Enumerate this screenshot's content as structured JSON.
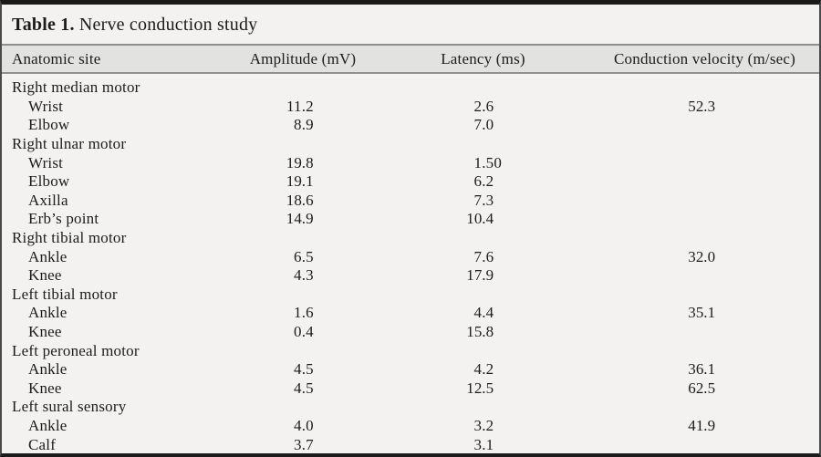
{
  "table": {
    "title_label": "Table 1.",
    "title_text": "Nerve conduction study",
    "columns": {
      "site": "Anatomic site",
      "amplitude": "Amplitude (mV)",
      "latency": "Latency (ms)",
      "velocity": "Conduction velocity (m/sec)"
    },
    "groups": [
      {
        "name": "Right median motor",
        "rows": [
          {
            "site": "Wrist",
            "amplitude": "11.2",
            "latency": "2.6",
            "velocity": "52.3"
          },
          {
            "site": "Elbow",
            "amplitude": "8.9",
            "latency": "7.0",
            "velocity": ""
          }
        ]
      },
      {
        "name": "Right ulnar motor",
        "rows": [
          {
            "site": "Wrist",
            "amplitude": "19.8",
            "latency": "1.50",
            "velocity": ""
          },
          {
            "site": "Elbow",
            "amplitude": "19.1",
            "latency": "6.2",
            "velocity": ""
          },
          {
            "site": "Axilla",
            "amplitude": "18.6",
            "latency": "7.3",
            "velocity": ""
          },
          {
            "site": "Erb’s point",
            "amplitude": "14.9",
            "latency": "10.4",
            "velocity": ""
          }
        ]
      },
      {
        "name": "Right tibial motor",
        "rows": [
          {
            "site": "Ankle",
            "amplitude": "6.5",
            "latency": "7.6",
            "velocity": "32.0"
          },
          {
            "site": "Knee",
            "amplitude": "4.3",
            "latency": "17.9",
            "velocity": ""
          }
        ]
      },
      {
        "name": "Left tibial motor",
        "rows": [
          {
            "site": "Ankle",
            "amplitude": "1.6",
            "latency": "4.4",
            "velocity": "35.1"
          },
          {
            "site": "Knee",
            "amplitude": "0.4",
            "latency": "15.8",
            "velocity": ""
          }
        ]
      },
      {
        "name": "Left peroneal motor",
        "rows": [
          {
            "site": "Ankle",
            "amplitude": "4.5",
            "latency": "4.2",
            "velocity": "36.1"
          },
          {
            "site": "Knee",
            "amplitude": "4.5",
            "latency": "12.5",
            "velocity": "62.5"
          }
        ]
      },
      {
        "name": "Left sural sensory",
        "rows": [
          {
            "site": "Ankle",
            "amplitude": "4.0",
            "latency": "3.2",
            "velocity": "41.9"
          },
          {
            "site": "Calf",
            "amplitude": "3.7",
            "latency": "3.1",
            "velocity": ""
          }
        ]
      }
    ]
  },
  "colors": {
    "background": "#f3f2f0",
    "header_band": "#e2e2e0",
    "rule_dark": "#1a1a1a",
    "rule_gray": "#8f8f8f",
    "text": "#1c1c1c"
  }
}
